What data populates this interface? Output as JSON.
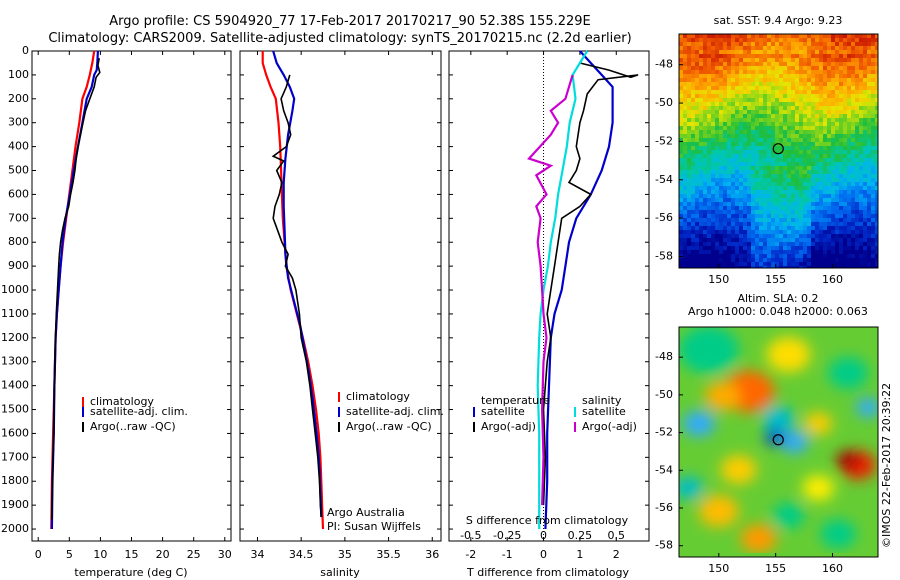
{
  "header": {
    "line1": "Argo profile: CS 5904920_77 17-Feb-2017 20170217_90 52.38S 155.229E",
    "line2": "Climatology: CARS2009. Satellite-adjusted climatology: synTS_20170215.nc (2.2d earlier)"
  },
  "colors": {
    "climatology": "#ff0000",
    "satellite": "#0000cc",
    "argo": "#000000",
    "argo_adj_salinity": "#cc00cc",
    "satellite_salinity": "#00dddd"
  },
  "chart_data": [
    {
      "type": "line",
      "name": "temperature-panel",
      "xlabel": "temperature (deg C)",
      "ylim": [
        2050,
        0
      ],
      "xlim": [
        -1,
        31
      ],
      "xticks": [
        0,
        5,
        10,
        15,
        20,
        25,
        30
      ],
      "yticks": [
        0,
        100,
        200,
        300,
        400,
        500,
        600,
        700,
        800,
        900,
        1000,
        1100,
        1200,
        1300,
        1400,
        1500,
        1600,
        1700,
        1800,
        1900,
        2000
      ],
      "legend": [
        "climatology",
        "satellite-adj. clim.",
        "Argo(..raw -QC)"
      ],
      "series": [
        {
          "name": "climatology",
          "color": "#ff0000",
          "points": [
            [
              9.0,
              0
            ],
            [
              8.7,
              50
            ],
            [
              8.3,
              100
            ],
            [
              7.8,
              150
            ],
            [
              7.1,
              200
            ],
            [
              6.6,
              300
            ],
            [
              6.0,
              400
            ],
            [
              5.5,
              500
            ],
            [
              5.0,
              600
            ],
            [
              4.5,
              700
            ],
            [
              4.0,
              800
            ],
            [
              3.6,
              900
            ],
            [
              3.3,
              1000
            ],
            [
              3.0,
              1100
            ],
            [
              2.8,
              1200
            ],
            [
              2.6,
              1400
            ],
            [
              2.4,
              1600
            ],
            [
              2.2,
              1800
            ],
            [
              2.1,
              2000
            ]
          ]
        },
        {
          "name": "satellite-adj. clim.",
          "color": "#0000cc",
          "points": [
            [
              9.6,
              0
            ],
            [
              9.5,
              50
            ],
            [
              9.4,
              80
            ],
            [
              9.0,
              100
            ],
            [
              8.6,
              150
            ],
            [
              7.8,
              200
            ],
            [
              7.1,
              300
            ],
            [
              6.4,
              400
            ],
            [
              5.7,
              500
            ],
            [
              5.1,
              600
            ],
            [
              4.4,
              700
            ],
            [
              3.9,
              800
            ],
            [
              3.6,
              900
            ],
            [
              3.3,
              1000
            ],
            [
              3.0,
              1100
            ],
            [
              2.8,
              1200
            ],
            [
              2.6,
              1400
            ],
            [
              2.5,
              1600
            ],
            [
              2.3,
              1800
            ],
            [
              2.2,
              2000
            ]
          ]
        },
        {
          "name": "Argo(..raw -QC)",
          "color": "#000000",
          "points": [
            [
              9.8,
              30
            ],
            [
              9.6,
              60
            ],
            [
              9.9,
              90
            ],
            [
              9.3,
              110
            ],
            [
              9.0,
              150
            ],
            [
              8.3,
              200
            ],
            [
              7.6,
              250
            ],
            [
              7.2,
              300
            ],
            [
              6.8,
              350
            ],
            [
              6.4,
              400
            ],
            [
              6.1,
              450
            ],
            [
              5.9,
              500
            ],
            [
              5.6,
              550
            ],
            [
              5.2,
              600
            ],
            [
              4.9,
              650
            ],
            [
              4.3,
              700
            ],
            [
              3.9,
              750
            ],
            [
              3.6,
              800
            ],
            [
              3.4,
              850
            ],
            [
              3.3,
              900
            ],
            [
              3.1,
              1000
            ],
            [
              2.9,
              1100
            ],
            [
              2.8,
              1200
            ],
            [
              2.6,
              1400
            ],
            [
              2.5,
              1600
            ],
            [
              2.3,
              1800
            ],
            [
              2.2,
              1960
            ]
          ]
        }
      ]
    },
    {
      "type": "line",
      "name": "salinity-panel",
      "xlabel": "salinity",
      "ylim": [
        2050,
        0
      ],
      "xlim": [
        33.8,
        36.1
      ],
      "xticks": [
        34,
        34.5,
        35,
        35.5,
        36
      ],
      "legend": [
        "climatology",
        "satellite-adj. clim.",
        "Argo(..raw -QC)"
      ],
      "annotation": [
        "Argo Australia",
        "PI: Susan Wijffels"
      ],
      "series": [
        {
          "name": "climatology",
          "color": "#ff0000",
          "points": [
            [
              34.06,
              0
            ],
            [
              34.06,
              50
            ],
            [
              34.1,
              100
            ],
            [
              34.15,
              150
            ],
            [
              34.21,
              200
            ],
            [
              34.24,
              300
            ],
            [
              34.26,
              400
            ],
            [
              34.27,
              500
            ],
            [
              34.28,
              600
            ],
            [
              34.29,
              700
            ],
            [
              34.31,
              800
            ],
            [
              34.33,
              900
            ],
            [
              34.38,
              1000
            ],
            [
              34.45,
              1100
            ],
            [
              34.52,
              1200
            ],
            [
              34.58,
              1300
            ],
            [
              34.63,
              1400
            ],
            [
              34.67,
              1500
            ],
            [
              34.7,
              1600
            ],
            [
              34.72,
              1700
            ],
            [
              34.73,
              1800
            ],
            [
              34.74,
              1900
            ],
            [
              34.75,
              2000
            ]
          ]
        },
        {
          "name": "satellite-adj. clim.",
          "color": "#0000cc",
          "points": [
            [
              34.18,
              0
            ],
            [
              34.22,
              50
            ],
            [
              34.3,
              100
            ],
            [
              34.37,
              150
            ],
            [
              34.42,
              200
            ],
            [
              34.4,
              250
            ],
            [
              34.35,
              350
            ],
            [
              34.32,
              450
            ],
            [
              34.3,
              550
            ],
            [
              34.3,
              650
            ],
            [
              34.31,
              750
            ],
            [
              34.32,
              850
            ],
            [
              34.35,
              950
            ],
            [
              34.42,
              1050
            ],
            [
              34.49,
              1150
            ],
            [
              34.54,
              1250
            ],
            [
              34.59,
              1350
            ],
            [
              34.63,
              1450
            ],
            [
              34.66,
              1550
            ],
            [
              34.69,
              1650
            ],
            [
              34.71,
              1750
            ],
            [
              34.72,
              1850
            ],
            [
              34.73,
              1950
            ]
          ]
        },
        {
          "name": "Argo(..raw -QC)",
          "color": "#000000",
          "points": [
            [
              34.37,
              100
            ],
            [
              34.33,
              150
            ],
            [
              34.27,
              200
            ],
            [
              34.3,
              250
            ],
            [
              34.35,
              300
            ],
            [
              34.38,
              350
            ],
            [
              34.33,
              400
            ],
            [
              34.18,
              440
            ],
            [
              34.3,
              460
            ],
            [
              34.22,
              500
            ],
            [
              34.28,
              550
            ],
            [
              34.25,
              600
            ],
            [
              34.2,
              650
            ],
            [
              34.18,
              700
            ],
            [
              34.23,
              750
            ],
            [
              34.28,
              800
            ],
            [
              34.35,
              850
            ],
            [
              34.32,
              900
            ],
            [
              34.4,
              950
            ],
            [
              34.44,
              1000
            ],
            [
              34.48,
              1100
            ],
            [
              34.5,
              1200
            ],
            [
              34.56,
              1300
            ],
            [
              34.6,
              1400
            ],
            [
              34.63,
              1500
            ],
            [
              34.66,
              1600
            ],
            [
              34.69,
              1700
            ],
            [
              34.71,
              1800
            ],
            [
              34.72,
              1900
            ],
            [
              34.73,
              1950
            ]
          ]
        }
      ]
    },
    {
      "type": "line",
      "name": "difference-panel",
      "xlabel": "T difference from climatology",
      "xlabel_top": "S difference from climatology",
      "ylim": [
        2050,
        0
      ],
      "xlim": [
        -2.6,
        2.9
      ],
      "xticks_bottom": [
        "-2",
        "-1",
        "0",
        "1",
        "2"
      ],
      "xticks_top": [
        "-0.5",
        "-0.25",
        "0",
        "0.25",
        "0.5"
      ],
      "legend_temperature_heading": "temperature",
      "legend_salinity_heading": "salinity",
      "legend_temperature": [
        "satellite",
        "Argo(-adj)"
      ],
      "legend_salinity": [
        "satellite",
        "Argo(-adj)"
      ],
      "series": [
        {
          "name": "temperature satellite",
          "color": "#0000cc",
          "points": [
            [
              1.0,
              0
            ],
            [
              1.3,
              50
            ],
            [
              1.6,
              100
            ],
            [
              1.9,
              150
            ],
            [
              1.9,
              200
            ],
            [
              1.9,
              300
            ],
            [
              1.8,
              400
            ],
            [
              1.6,
              500
            ],
            [
              1.3,
              600
            ],
            [
              0.9,
              700
            ],
            [
              0.7,
              800
            ],
            [
              0.6,
              900
            ],
            [
              0.5,
              1000
            ],
            [
              0.3,
              1100
            ],
            [
              0.2,
              1200
            ],
            [
              0.15,
              1400
            ],
            [
              0.1,
              1600
            ],
            [
              0.1,
              1800
            ],
            [
              0.05,
              2000
            ]
          ]
        },
        {
          "name": "temperature Argo(-adj)",
          "color": "#000000",
          "points": [
            [
              1.0,
              50
            ],
            [
              1.8,
              80
            ],
            [
              2.4,
              110
            ],
            [
              2.6,
              100
            ],
            [
              1.5,
              120
            ],
            [
              1.2,
              180
            ],
            [
              1.1,
              250
            ],
            [
              1.0,
              300
            ],
            [
              0.9,
              400
            ],
            [
              1.0,
              450
            ],
            [
              0.9,
              500
            ],
            [
              0.7,
              550
            ],
            [
              1.3,
              600
            ],
            [
              1.0,
              650
            ],
            [
              0.5,
              700
            ],
            [
              0.4,
              800
            ],
            [
              0.3,
              900
            ],
            [
              0.2,
              1000
            ],
            [
              0.1,
              1100
            ],
            [
              0.2,
              1200
            ],
            [
              0.1,
              1300
            ],
            [
              0.0,
              1500
            ],
            [
              0.05,
              1700
            ],
            [
              0.0,
              1900
            ]
          ]
        },
        {
          "name": "salinity satellite",
          "color": "#00dddd",
          "points": [
            [
              0.3,
              0
            ],
            [
              0.25,
              50
            ],
            [
              0.2,
              100
            ],
            [
              0.22,
              200
            ],
            [
              0.18,
              300
            ],
            [
              0.16,
              400
            ],
            [
              0.13,
              500
            ],
            [
              0.1,
              600
            ],
            [
              0.08,
              700
            ],
            [
              0.05,
              800
            ],
            [
              0.03,
              900
            ],
            [
              0.0,
              1000
            ],
            [
              -0.02,
              1100
            ],
            [
              -0.03,
              1200
            ],
            [
              -0.04,
              1400
            ],
            [
              -0.03,
              1600
            ],
            [
              -0.03,
              1800
            ],
            [
              -0.03,
              2000
            ]
          ]
        },
        {
          "name": "salinity Argo(-adj)",
          "color": "#cc00cc",
          "points": [
            [
              0.2,
              100
            ],
            [
              0.15,
              200
            ],
            [
              0.05,
              250
            ],
            [
              0.1,
              300
            ],
            [
              0.05,
              350
            ],
            [
              -0.1,
              450
            ],
            [
              0.05,
              480
            ],
            [
              -0.05,
              520
            ],
            [
              0.02,
              600
            ],
            [
              -0.05,
              650
            ],
            [
              -0.02,
              700
            ],
            [
              -0.04,
              800
            ],
            [
              -0.02,
              900
            ],
            [
              -0.01,
              1000
            ],
            [
              0.0,
              1100
            ],
            [
              0.02,
              1200
            ],
            [
              0.0,
              1300
            ],
            [
              -0.01,
              1500
            ],
            [
              0.0,
              1700
            ],
            [
              -0.01,
              1900
            ]
          ]
        }
      ]
    },
    {
      "type": "heatmap",
      "name": "sst-map",
      "title": "sat. SST: 9.4 Argo: 9.23",
      "xlim": [
        146.5,
        164
      ],
      "ylim": [
        -58.6,
        -46.4
      ],
      "xticks": [
        "150",
        "155",
        "160"
      ],
      "yticks": [
        "-48",
        "-50",
        "-52",
        "-54",
        "-56",
        "-58"
      ],
      "marker": {
        "lon": 155.229,
        "lat": -52.38
      }
    },
    {
      "type": "heatmap",
      "name": "sla-map",
      "title_line1": "Altim. SLA: 0.2",
      "title_line2": "Argo h1000: 0.048 h2000: 0.063",
      "xlim": [
        146.5,
        164
      ],
      "ylim": [
        -58.6,
        -46.4
      ],
      "xticks": [
        "150",
        "155",
        "160"
      ],
      "yticks": [
        "-48",
        "-50",
        "-52",
        "-54",
        "-56",
        "-58"
      ],
      "marker": {
        "lon": 155.229,
        "lat": -52.38
      }
    }
  ],
  "footer": {
    "credit": "©IMOS 22-Feb-2017 20:39:22"
  }
}
